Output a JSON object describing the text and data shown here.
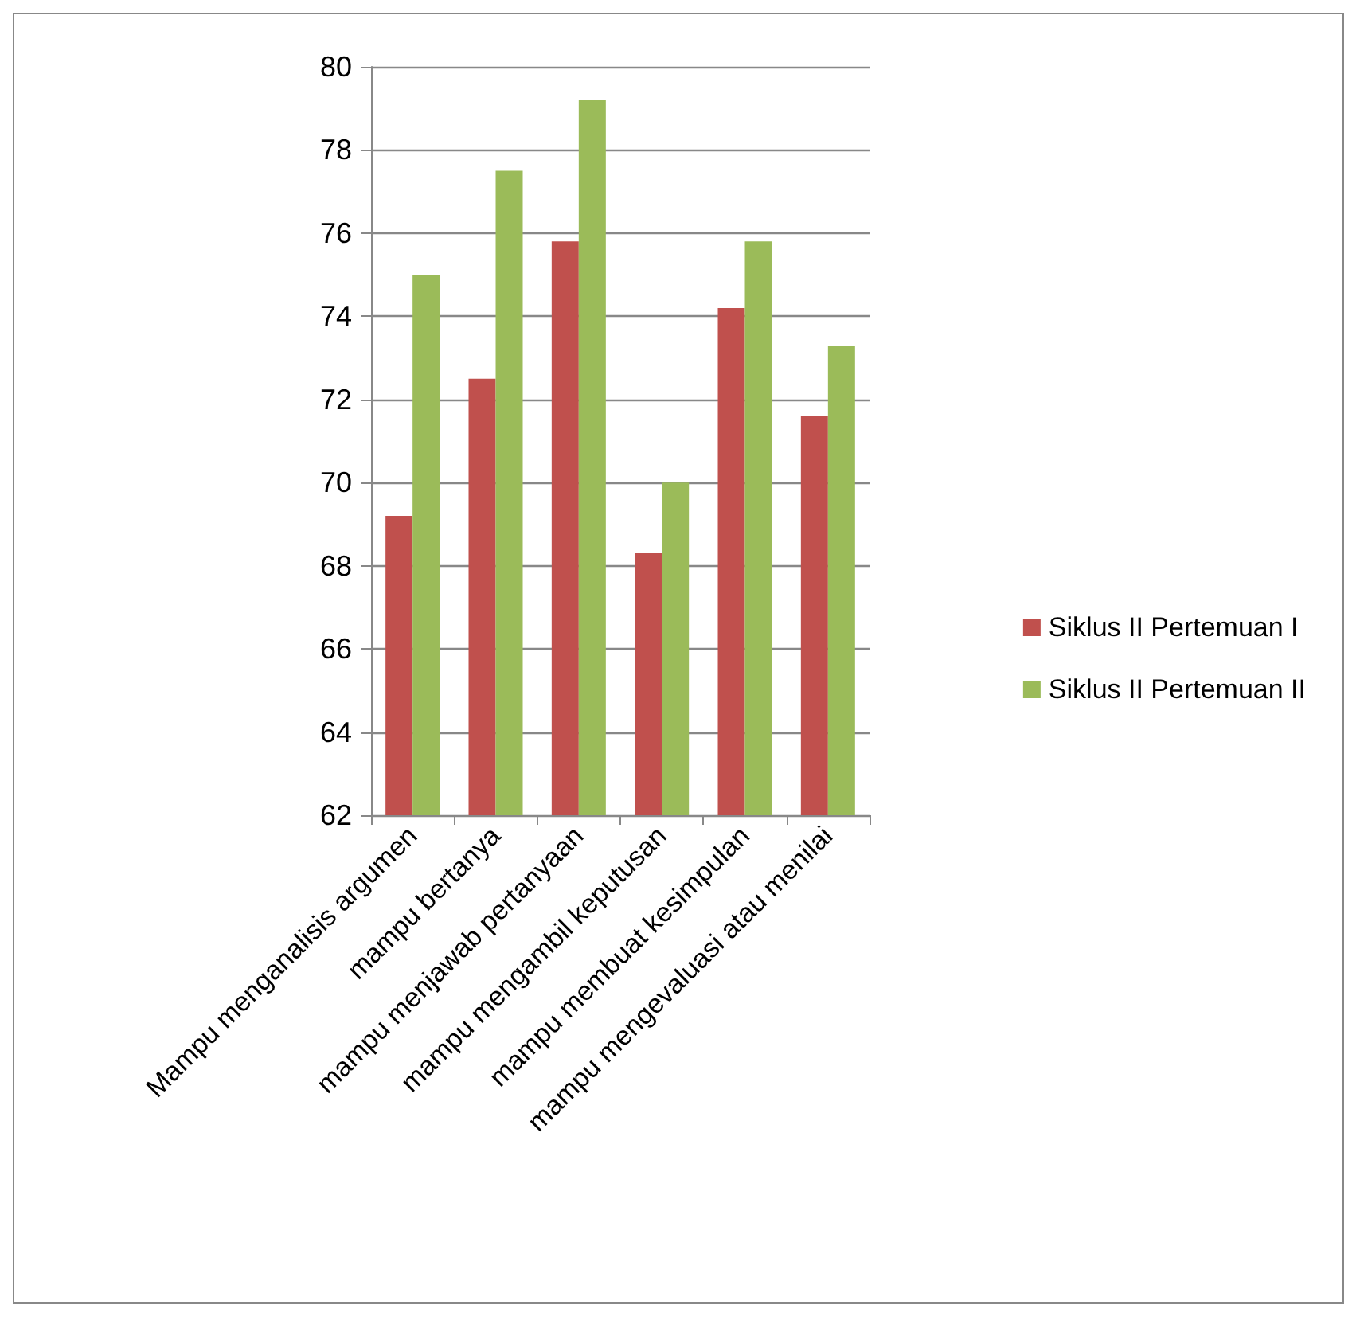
{
  "chart_data": {
    "type": "bar",
    "categories": [
      "Mampu menganalisis argumen",
      "mampu bertanya",
      "mampu menjawab pertanyaan",
      "mampu mengambil keputusan",
      "mampu membuat kesimpulan",
      "mampu mengevaluasi atau menilai"
    ],
    "series": [
      {
        "name": "Siklus II Pertemuan I",
        "color": "#c0504d",
        "values": [
          69.2,
          72.5,
          75.8,
          68.3,
          74.2,
          71.6
        ]
      },
      {
        "name": "Siklus II Pertemuan II",
        "color": "#9bbb59",
        "values": [
          75.0,
          77.5,
          79.2,
          70.0,
          75.8,
          73.3
        ]
      }
    ],
    "ylim": [
      62,
      80
    ],
    "yticks": [
      62,
      64,
      66,
      68,
      70,
      72,
      74,
      76,
      78,
      80
    ],
    "grid": "y",
    "legend": "right"
  }
}
